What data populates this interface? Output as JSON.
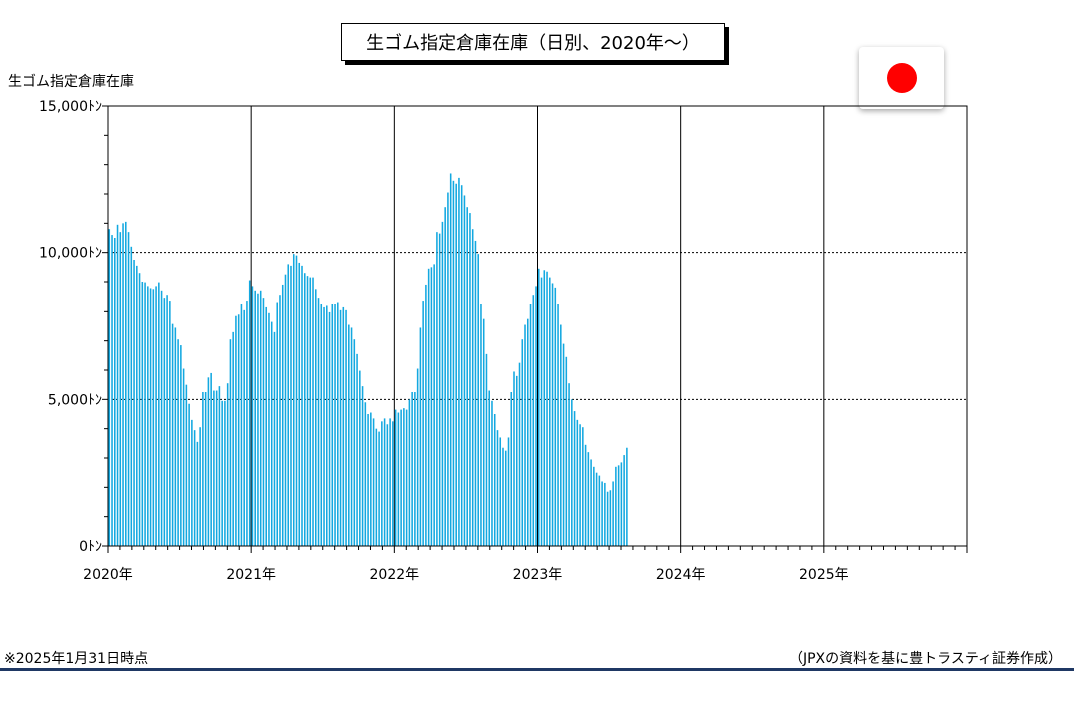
{
  "chart_data": {
    "type": "bar",
    "title": "生ゴム指定倉庫在庫（日別、2020年～）",
    "ylabel": "生ゴム指定倉庫在庫",
    "ylim": [
      0,
      15000
    ],
    "yticks": [
      {
        "value": 0,
        "label": "0ﾄﾝ"
      },
      {
        "value": 5000,
        "label": "5,000ﾄﾝ"
      },
      {
        "value": 10000,
        "label": "10,000ﾄﾝ"
      },
      {
        "value": 15000,
        "label": "15,000ﾄﾝ"
      }
    ],
    "xlim": [
      2020.0,
      2026.0
    ],
    "year_labels": [
      "2020年",
      "2021年",
      "2022年",
      "2023年",
      "2024年",
      "2025年"
    ],
    "grid": "horizontal dashed at 5,000 and 10,000; vertical solid at year boundaries",
    "color": "#13a8e0",
    "x_start": 2020.0,
    "x_step": 0.019231,
    "values": [
      10800,
      10600,
      10500,
      10950,
      10700,
      11000,
      11050,
      10700,
      10200,
      9750,
      9550,
      9300,
      9000,
      8980,
      8850,
      8780,
      8750,
      8850,
      8980,
      8700,
      8450,
      8550,
      8350,
      7580,
      7450,
      7050,
      6850,
      6050,
      5500,
      4850,
      4300,
      3950,
      3550,
      4050,
      5250,
      5250,
      5750,
      5900,
      5300,
      5300,
      5450,
      4950,
      4950,
      5550,
      7050,
      7300,
      7850,
      7900,
      8250,
      8050,
      8350,
      9050,
      8850,
      8700,
      8600,
      8700,
      8450,
      8150,
      7950,
      7650,
      7300,
      8300,
      8550,
      8900,
      9250,
      9600,
      9550,
      9950,
      9900,
      9650,
      9550,
      9300,
      9200,
      9150,
      9150,
      8750,
      8450,
      8250,
      8150,
      8200,
      7980,
      8250,
      8250,
      8300,
      8050,
      8150,
      8050,
      7550,
      7450,
      7050,
      6550,
      5980,
      5450,
      4900,
      4500,
      4550,
      4350,
      4000,
      3900,
      4250,
      4350,
      4150,
      4350,
      4250,
      4650,
      4550,
      4650,
      4700,
      4650,
      5000,
      5250,
      5250,
      6050,
      7450,
      8350,
      8900,
      9450,
      9500,
      9600,
      10700,
      10650,
      11050,
      11550,
      12050,
      12700,
      12450,
      12350,
      12550,
      12300,
      11950,
      11550,
      11350,
      10800,
      10400,
      9950,
      8250,
      7750,
      6550,
      5300,
      4950,
      4500,
      3950,
      3700,
      3350,
      3250,
      3700,
      5250,
      5950,
      5800,
      6250,
      7050,
      7550,
      7750,
      8250,
      8550,
      8850,
      9450,
      9150,
      9400,
      9350,
      9150,
      8950,
      8800,
      8250,
      7550,
      6900,
      6450,
      5550,
      5000,
      4600,
      4300,
      4150,
      4050,
      3450,
      3200,
      2950,
      2700,
      2500,
      2400,
      2200,
      2150,
      1850,
      1900,
      2200,
      2700,
      2750,
      2850,
      3100,
      3350
    ]
  },
  "footer": {
    "note": "※2025年1月31日時点",
    "source": "（JPXの資料を基に豊トラスティ証券作成）"
  },
  "colors": {
    "bar": "#13a8e0",
    "flag_red": "#ff0000",
    "rule": "#1f3864"
  }
}
